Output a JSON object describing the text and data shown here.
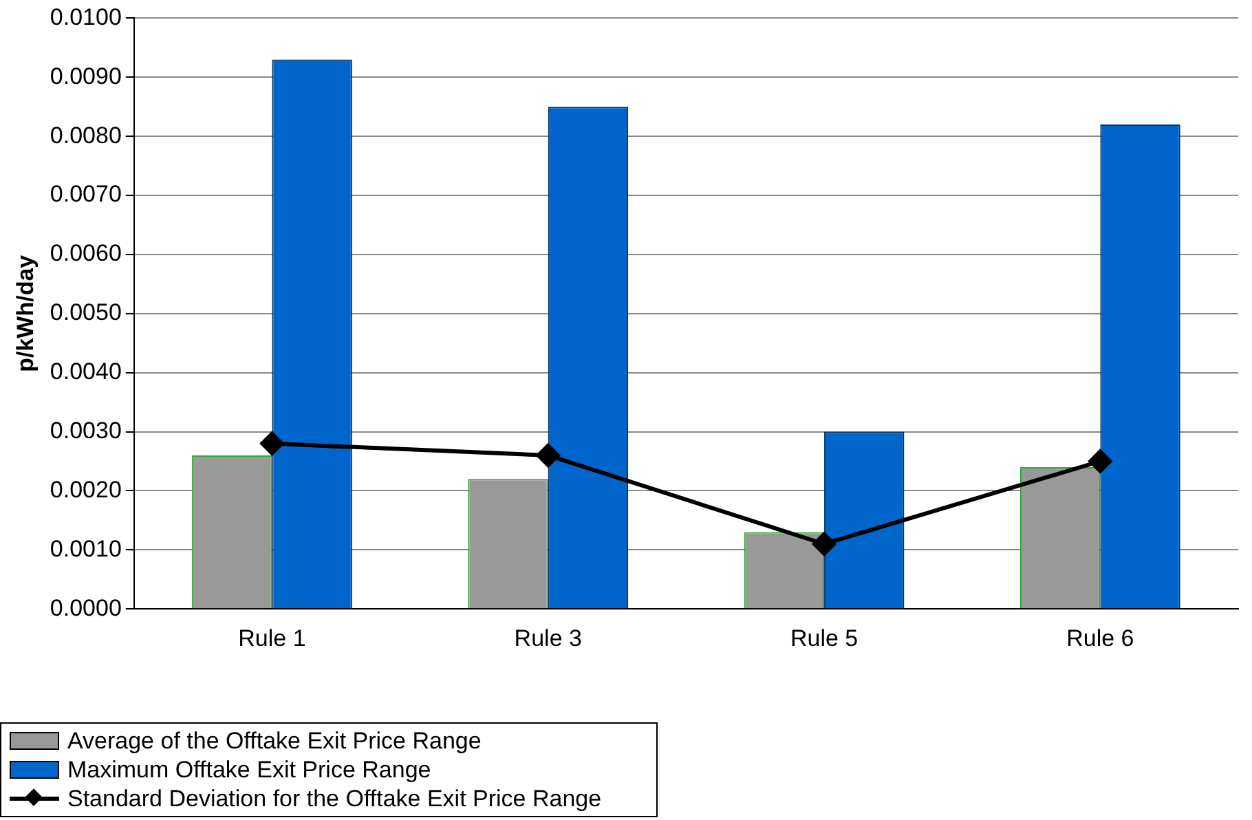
{
  "chart_data": {
    "type": "bar",
    "ylabel": "p/kWh/day",
    "categories": [
      "Rule 1",
      "Rule 3",
      "Rule 5",
      "Rule 6"
    ],
    "series": [
      {
        "name": "Average of the Offtake Exit Price Range",
        "color": "#999999",
        "values": [
          0.0026,
          0.0022,
          0.0013,
          0.0024
        ]
      },
      {
        "name": "Maximum Offtake Exit Price Range",
        "color": "#0066cc",
        "values": [
          0.0093,
          0.0085,
          0.003,
          0.0082
        ]
      },
      {
        "name": "Standard Deviation for the Offtake Exit Price Range",
        "type": "line",
        "color": "#000000",
        "marker": "diamond",
        "values": [
          0.0028,
          0.0026,
          0.0011,
          0.0025
        ]
      }
    ],
    "ylim": [
      0,
      0.01
    ],
    "yticks": [
      {
        "value": 0,
        "label": "0.0000"
      },
      {
        "value": 0.001,
        "label": "0.0010"
      },
      {
        "value": 0.002,
        "label": "0.0020"
      },
      {
        "value": 0.003,
        "label": "0.0030"
      },
      {
        "value": 0.004,
        "label": "0.0040"
      },
      {
        "value": 0.005,
        "label": "0.0050"
      },
      {
        "value": 0.006,
        "label": "0.0060"
      },
      {
        "value": 0.007,
        "label": "0.0070"
      },
      {
        "value": 0.008,
        "label": "0.0080"
      },
      {
        "value": 0.009,
        "label": "0.0090"
      },
      {
        "value": 0.01,
        "label": "0.0100"
      }
    ],
    "grid": "y",
    "legend": "bottom left"
  }
}
